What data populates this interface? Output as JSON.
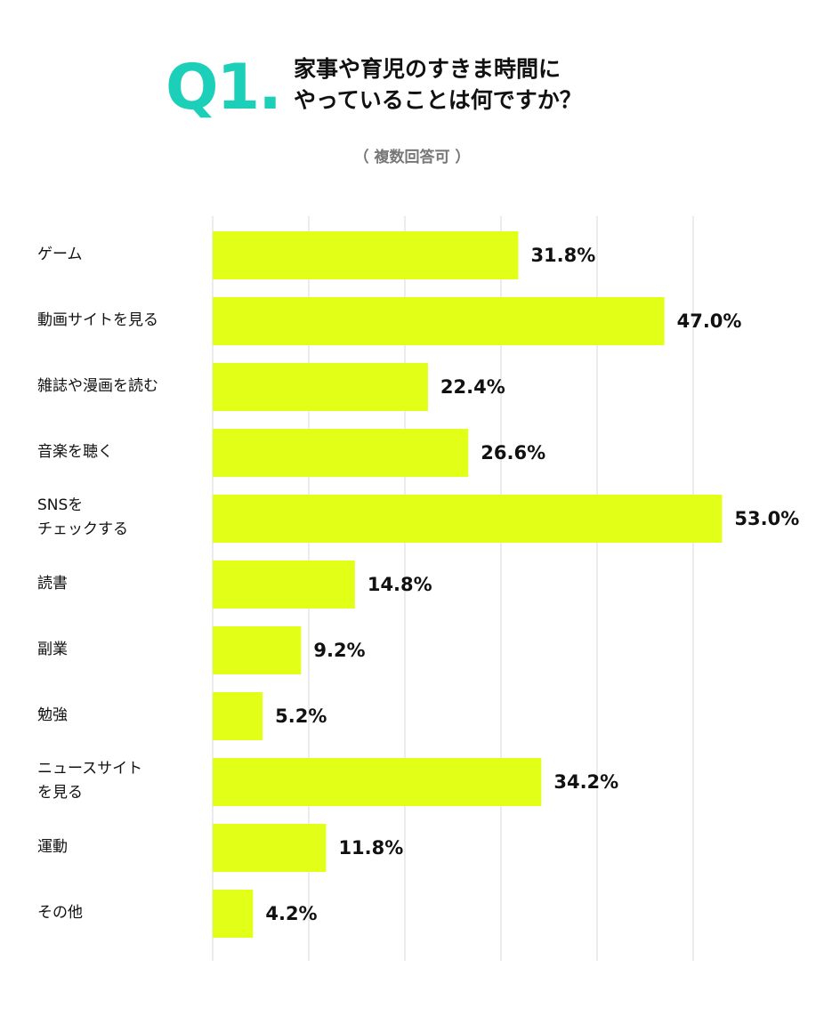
{
  "header": {
    "q_number": "Q1.",
    "title_line1": "家事や育児のすきま時間に",
    "title_line2": "やっていることは何ですか？",
    "note": "（ 複数回答可 ）"
  },
  "colors": {
    "accent": "#1ccfb9",
    "bar": "#e1ff17",
    "grid": "#e6e6e6",
    "text": "#111111"
  },
  "chart_data": {
    "type": "bar",
    "orientation": "horizontal",
    "title": "家事や育児のすきま時間にやっていることは何ですか？",
    "categories": [
      "ゲーム",
      "動画サイトを見る",
      "雑誌や漫画を読む",
      "音楽を聴く",
      "SNSを\nチェックする",
      "読書",
      "副業",
      "勉強",
      "ニュースサイト\nを見る",
      "運動",
      "その他"
    ],
    "values": [
      31.8,
      47.0,
      22.4,
      26.6,
      53.0,
      14.8,
      9.2,
      5.2,
      34.2,
      11.8,
      4.2
    ],
    "value_labels": [
      "31.8%",
      "47.0%",
      "22.4%",
      "26.6%",
      "53.0%",
      "14.8%",
      "9.2%",
      "5.2%",
      "34.2%",
      "11.8%",
      "4.2%"
    ],
    "xlim": [
      0,
      59.5
    ],
    "grid": true,
    "legend": "none"
  }
}
